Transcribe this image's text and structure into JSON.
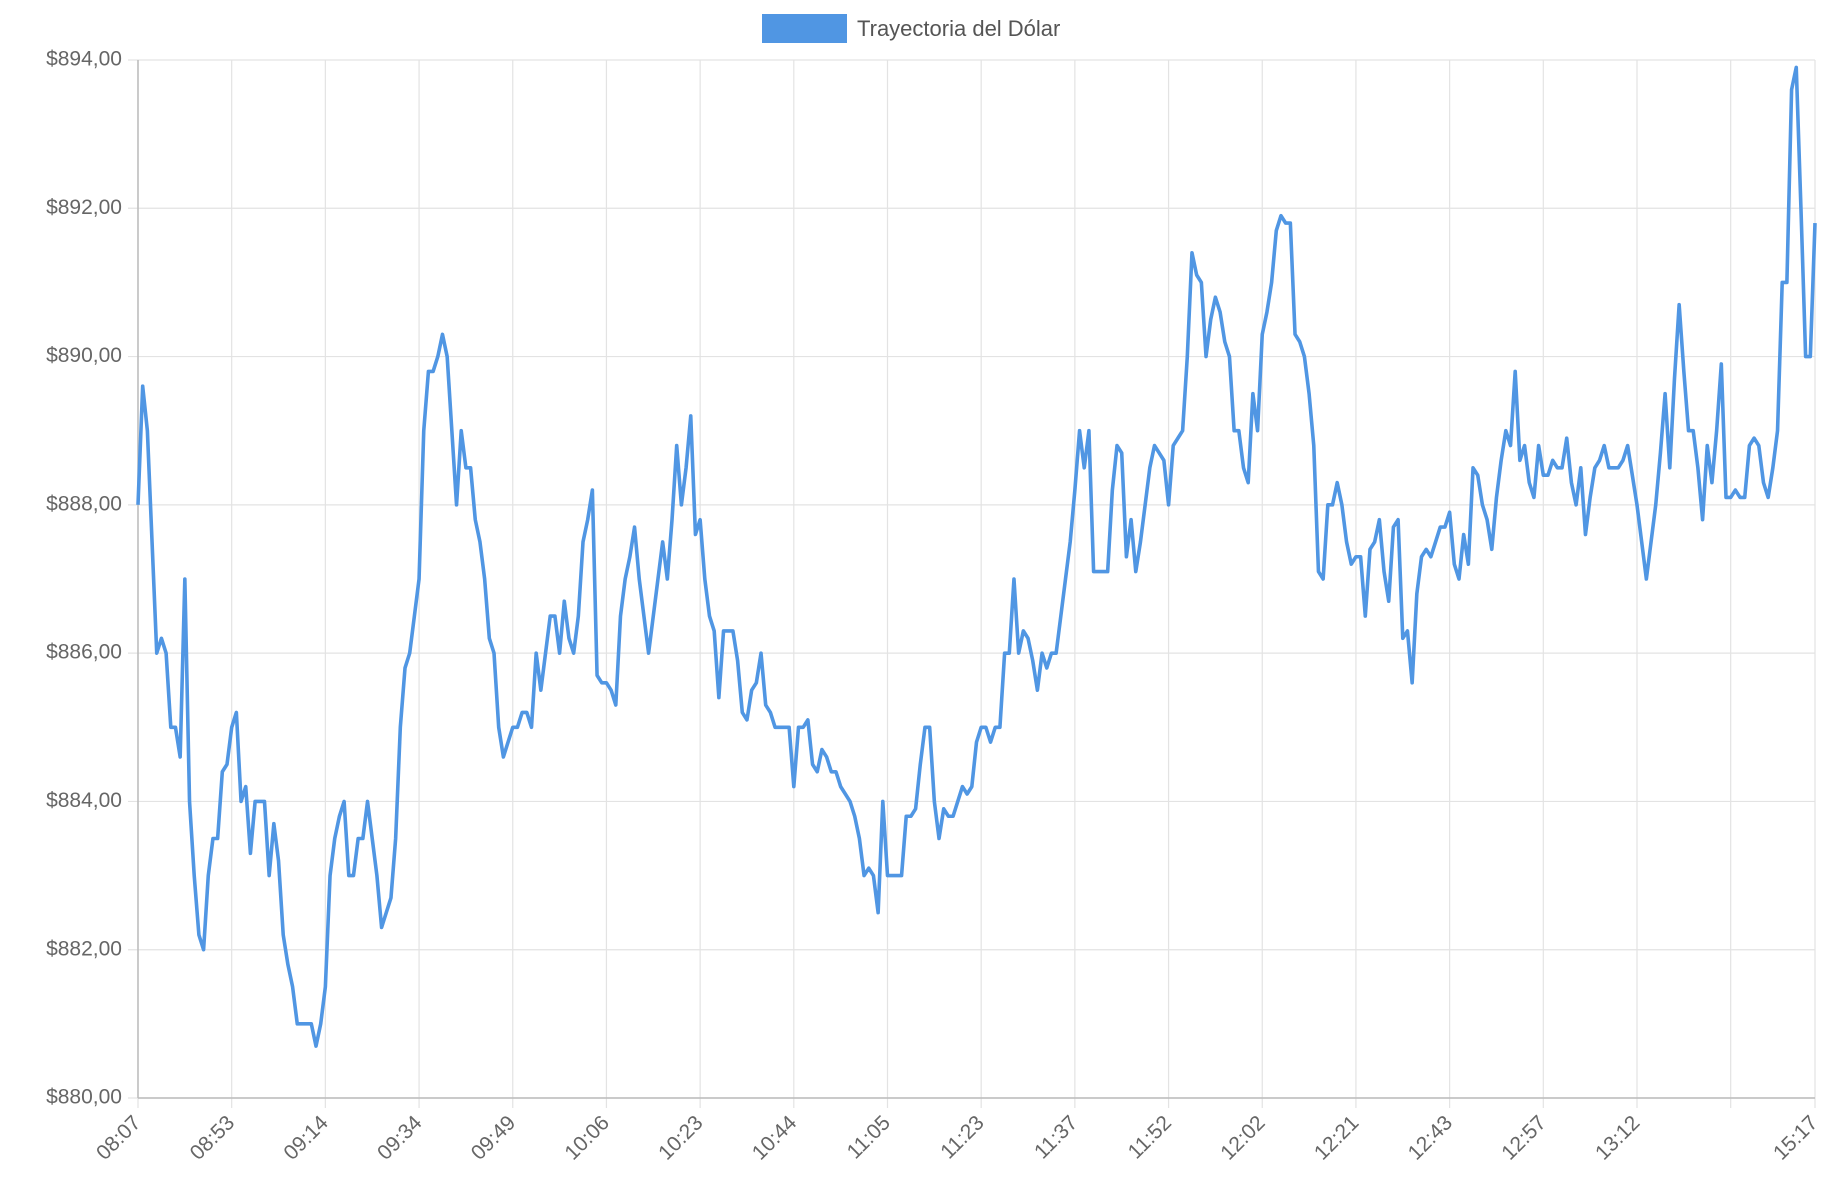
{
  "chart_data": {
    "type": "line",
    "legend_position": "top",
    "grid": true,
    "categories": [
      "08:07",
      null,
      null,
      null,
      null,
      null,
      null,
      null,
      null,
      null,
      null,
      null,
      null,
      null,
      null,
      null,
      null,
      null,
      null,
      null,
      "08:53",
      null,
      null,
      null,
      null,
      null,
      null,
      null,
      null,
      null,
      null,
      null,
      null,
      null,
      null,
      null,
      null,
      null,
      null,
      null,
      "09:14",
      null,
      null,
      null,
      null,
      null,
      null,
      null,
      null,
      null,
      null,
      null,
      null,
      null,
      null,
      null,
      null,
      null,
      null,
      null,
      "09:34",
      null,
      null,
      null,
      null,
      null,
      null,
      null,
      null,
      null,
      null,
      null,
      null,
      null,
      null,
      null,
      null,
      null,
      null,
      null,
      "09:49",
      null,
      null,
      null,
      null,
      null,
      null,
      null,
      null,
      null,
      null,
      null,
      null,
      null,
      null,
      null,
      null,
      null,
      null,
      null,
      "10:06",
      null,
      null,
      null,
      null,
      null,
      null,
      null,
      null,
      null,
      null,
      null,
      null,
      null,
      null,
      null,
      null,
      null,
      null,
      null,
      "10:23",
      null,
      null,
      null,
      null,
      null,
      null,
      null,
      null,
      null,
      null,
      null,
      null,
      null,
      null,
      null,
      null,
      null,
      null,
      null,
      "10:44",
      null,
      null,
      null,
      null,
      null,
      null,
      null,
      null,
      null,
      null,
      null,
      null,
      null,
      null,
      null,
      null,
      null,
      null,
      null,
      "11:05",
      null,
      null,
      null,
      null,
      null,
      null,
      null,
      null,
      null,
      null,
      null,
      null,
      null,
      null,
      null,
      null,
      null,
      null,
      null,
      "11:23",
      null,
      null,
      null,
      null,
      null,
      null,
      null,
      null,
      null,
      null,
      null,
      null,
      null,
      null,
      null,
      null,
      null,
      null,
      null,
      "11:37",
      null,
      null,
      null,
      null,
      null,
      null,
      null,
      null,
      null,
      null,
      null,
      null,
      null,
      null,
      null,
      null,
      null,
      null,
      null,
      "11:52",
      null,
      null,
      null,
      null,
      null,
      null,
      null,
      null,
      null,
      null,
      null,
      null,
      null,
      null,
      null,
      null,
      null,
      null,
      null,
      "12:02",
      null,
      null,
      null,
      null,
      null,
      null,
      null,
      null,
      null,
      null,
      null,
      null,
      null,
      null,
      null,
      null,
      null,
      null,
      null,
      "12:21",
      null,
      null,
      null,
      null,
      null,
      null,
      null,
      null,
      null,
      null,
      null,
      null,
      null,
      null,
      null,
      null,
      null,
      null,
      null,
      "12:43",
      null,
      null,
      null,
      null,
      null,
      null,
      null,
      null,
      null,
      null,
      null,
      null,
      null,
      null,
      null,
      null,
      null,
      null,
      null,
      "12:57",
      null,
      null,
      null,
      null,
      null,
      null,
      null,
      null,
      null,
      null,
      null,
      null,
      null,
      null,
      null,
      null,
      null,
      null,
      null,
      "13:12",
      null,
      null,
      null,
      null,
      null,
      null,
      null,
      null,
      null,
      null,
      null,
      null,
      null,
      null,
      null,
      null,
      null,
      null,
      null,
      null,
      null,
      null,
      null,
      null,
      null,
      null,
      null,
      null,
      null,
      null,
      null,
      null,
      null,
      null,
      null,
      null,
      null,
      "15:17"
    ],
    "series": [
      {
        "name": "Trayectoria del Dólar",
        "color": "#5096e3",
        "values": [
          888,
          889.6,
          889,
          887.5,
          886,
          886.2,
          886,
          885,
          885,
          884.6,
          887,
          884,
          883,
          882.2,
          882,
          883,
          883.5,
          883.5,
          884.4,
          884.5,
          885,
          885.2,
          884,
          884.2,
          883.3,
          884,
          884,
          884,
          883,
          883.7,
          883.2,
          882.2,
          881.8,
          881.5,
          881,
          881,
          881,
          881,
          880.7,
          881,
          881.5,
          883,
          883.5,
          883.8,
          884,
          883,
          883,
          883.5,
          883.5,
          884,
          883.5,
          883,
          882.3,
          882.5,
          882.7,
          883.5,
          885,
          885.8,
          886,
          886.5,
          887,
          889,
          889.8,
          889.8,
          890,
          890.3,
          890,
          889,
          888,
          889,
          888.5,
          888.5,
          887.8,
          887.5,
          887,
          886.2,
          886,
          885,
          884.6,
          884.8,
          885,
          885,
          885.2,
          885.2,
          885,
          886,
          885.5,
          886,
          886.5,
          886.5,
          886,
          886.7,
          886.2,
          886,
          886.5,
          887.5,
          887.8,
          888.2,
          885.7,
          885.6,
          885.6,
          885.5,
          885.3,
          886.5,
          887,
          887.3,
          887.7,
          887,
          886.5,
          886,
          886.5,
          887,
          887.5,
          887,
          887.8,
          888.8,
          888,
          888.5,
          889.2,
          887.6,
          887.8,
          887,
          886.5,
          886.3,
          885.4,
          886.3,
          886.3,
          886.3,
          885.9,
          885.2,
          885.1,
          885.5,
          885.6,
          886,
          885.3,
          885.2,
          885,
          885,
          885,
          885,
          884.2,
          885,
          885,
          885.1,
          884.5,
          884.4,
          884.7,
          884.6,
          884.4,
          884.4,
          884.2,
          884.1,
          884,
          883.8,
          883.5,
          883,
          883.1,
          883,
          882.5,
          884,
          883,
          883,
          883,
          883,
          883.8,
          883.8,
          883.9,
          884.5,
          885,
          885,
          884,
          883.5,
          883.9,
          883.8,
          883.8,
          884,
          884.2,
          884.1,
          884.2,
          884.8,
          885,
          885,
          884.8,
          885,
          885,
          886,
          886,
          887,
          886,
          886.3,
          886.2,
          885.9,
          885.5,
          886,
          885.8,
          886,
          886,
          886.5,
          887,
          887.5,
          888.2,
          889,
          888.5,
          889,
          887.1,
          887.1,
          887.1,
          887.1,
          888.2,
          888.8,
          888.7,
          887.3,
          887.8,
          887.1,
          887.5,
          888,
          888.5,
          888.8,
          888.7,
          888.6,
          888,
          888.8,
          888.9,
          889,
          890,
          891.4,
          891.1,
          891,
          890,
          890.5,
          890.8,
          890.6,
          890.2,
          890,
          889,
          889,
          888.5,
          888.3,
          889.5,
          889,
          890.3,
          890.6,
          891,
          891.7,
          891.9,
          891.8,
          891.8,
          890.3,
          890.2,
          890,
          889.5,
          888.8,
          887.1,
          887,
          888,
          888,
          888.3,
          888,
          887.5,
          887.2,
          887.3,
          887.3,
          886.5,
          887.4,
          887.5,
          887.8,
          887.1,
          886.7,
          887.7,
          887.8,
          886.2,
          886.3,
          885.6,
          886.8,
          887.3,
          887.4,
          887.3,
          887.5,
          887.7,
          887.7,
          887.9,
          887.2,
          887,
          887.6,
          887.2,
          888.5,
          888.4,
          888,
          887.8,
          887.4,
          888.1,
          888.6,
          889,
          888.8,
          889.8,
          888.6,
          888.8,
          888.3,
          888.1,
          888.8,
          888.4,
          888.4,
          888.6,
          888.5,
          888.5,
          888.9,
          888.3,
          888,
          888.5,
          887.6,
          888.1,
          888.5,
          888.6,
          888.8,
          888.5,
          888.5,
          888.5,
          888.6,
          888.8,
          888.4,
          888,
          887.5,
          887,
          887.5,
          888,
          888.7,
          889.5,
          888.5,
          889.7,
          890.7,
          889.8,
          889,
          889,
          888.5,
          887.8,
          888.8,
          888.3,
          889,
          889.9,
          888.1,
          888.1,
          888.2,
          888.1,
          888.1,
          888.8,
          888.9,
          888.8,
          888.3,
          888.1,
          888.5,
          889,
          891,
          891,
          893.6,
          893.9,
          892,
          890,
          890,
          891.8
        ]
      }
    ],
    "ylim": [
      880,
      894
    ],
    "yticks": [
      {
        "value": 880,
        "label": "$880,00"
      },
      {
        "value": 882,
        "label": "$882,00"
      },
      {
        "value": 884,
        "label": "$884,00"
      },
      {
        "value": 886,
        "label": "$886,00"
      },
      {
        "value": 888,
        "label": "$888,00"
      },
      {
        "value": 890,
        "label": "$890,00"
      },
      {
        "value": 892,
        "label": "$892,00"
      },
      {
        "value": 894,
        "label": "$894,00"
      }
    ]
  }
}
